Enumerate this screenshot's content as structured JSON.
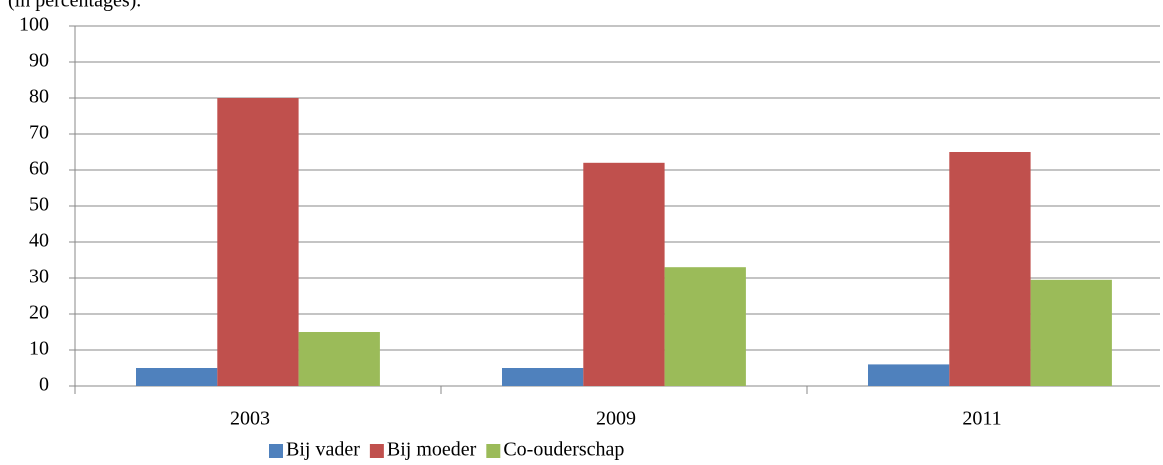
{
  "chart_data": {
    "type": "bar",
    "subtitle": "(in percentages).",
    "categories": [
      "2003",
      "2009",
      "2011"
    ],
    "series": [
      {
        "name": "Bij vader",
        "color": "#4f81bd",
        "values": [
          5,
          5,
          6
        ]
      },
      {
        "name": "Bij moeder",
        "color": "#c0504d",
        "values": [
          80,
          62,
          65
        ]
      },
      {
        "name": "Co-ouderschap",
        "color": "#9bbb59",
        "values": [
          15,
          33,
          29.5
        ]
      }
    ],
    "ylim": [
      0,
      100
    ],
    "yticks": [
      0,
      10,
      20,
      30,
      40,
      50,
      60,
      70,
      80,
      90,
      100
    ],
    "grid": true,
    "legend": "bottom"
  }
}
